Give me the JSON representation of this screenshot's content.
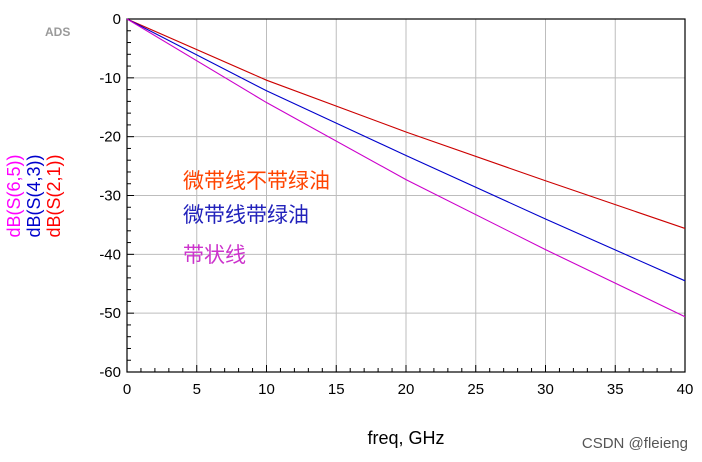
{
  "logo": "ADS",
  "watermark": "CSDN @fleieng",
  "chart_data": {
    "type": "line",
    "xlabel": "freq, GHz",
    "xlim": [
      0,
      40
    ],
    "ylim": [
      -60,
      0
    ],
    "xticks": [
      0,
      5,
      10,
      15,
      20,
      25,
      30,
      35,
      40
    ],
    "yticks": [
      0,
      -10,
      -20,
      -30,
      -40,
      -50,
      -60
    ],
    "grid": true,
    "ylabels": [
      {
        "text": "dB(S(6,5))",
        "color": "#ff00ff"
      },
      {
        "text": "dB(S(4,3))",
        "color": "#0000cc"
      },
      {
        "text": "dB(S(2,1))",
        "color": "#ff0000"
      }
    ],
    "series": [
      {
        "name": "dB(S(2,1))",
        "color": "#cc0000",
        "x": [
          0,
          10,
          20,
          30,
          40
        ],
        "y": [
          0,
          -10.4,
          -19.2,
          -27.5,
          -35.6
        ]
      },
      {
        "name": "dB(S(4,3))",
        "color": "#0000cc",
        "x": [
          0,
          10,
          20,
          30,
          40
        ],
        "y": [
          0,
          -12.2,
          -23.2,
          -34.0,
          -44.5
        ]
      },
      {
        "name": "dB(S(6,5))",
        "color": "#cc00cc",
        "x": [
          0,
          10,
          20,
          30,
          40
        ],
        "y": [
          0,
          -14.2,
          -27.3,
          -39.2,
          -50.6
        ]
      }
    ],
    "annotations": [
      {
        "text": "微带线不带绿油",
        "color": "#ff4400"
      },
      {
        "text": "微带线带绿油",
        "color": "#2222bb"
      },
      {
        "text": "带状线",
        "color": "#cc33cc"
      }
    ]
  }
}
